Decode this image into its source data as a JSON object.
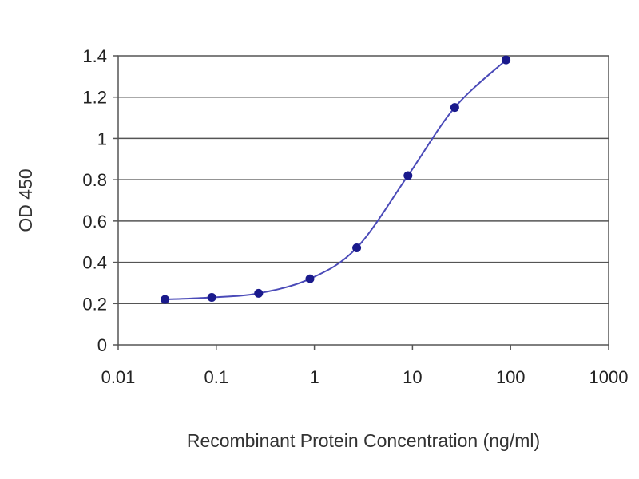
{
  "chart_data": {
    "type": "line",
    "xlabel": "Recombinant Protein Concentration (ng/ml)",
    "ylabel": "OD 450",
    "x_scale": "log",
    "xlim": [
      0.01,
      1000
    ],
    "ylim": [
      0,
      1.4
    ],
    "x_ticks": [
      0.01,
      0.1,
      1,
      10,
      100,
      1000
    ],
    "x_tick_labels": [
      "0.01",
      "0.1",
      "1",
      "10",
      "100",
      "1000"
    ],
    "y_ticks": [
      0,
      0.2,
      0.4,
      0.6,
      0.8,
      1,
      1.2,
      1.4
    ],
    "y_tick_labels": [
      "0",
      "0.2",
      "0.4",
      "0.6",
      "0.8",
      "1",
      "1.2",
      "1.4"
    ],
    "grid": "horizontal",
    "series": [
      {
        "x": [
          0.03,
          0.09,
          0.27,
          0.9,
          2.7,
          9,
          27,
          90
        ],
        "y": [
          0.22,
          0.23,
          0.25,
          0.32,
          0.47,
          0.82,
          1.15,
          1.38
        ]
      }
    ],
    "colors": {
      "line": "#4a4ab8",
      "marker": "#1a1a8c",
      "grid": "#555555",
      "axis": "#555555"
    }
  }
}
